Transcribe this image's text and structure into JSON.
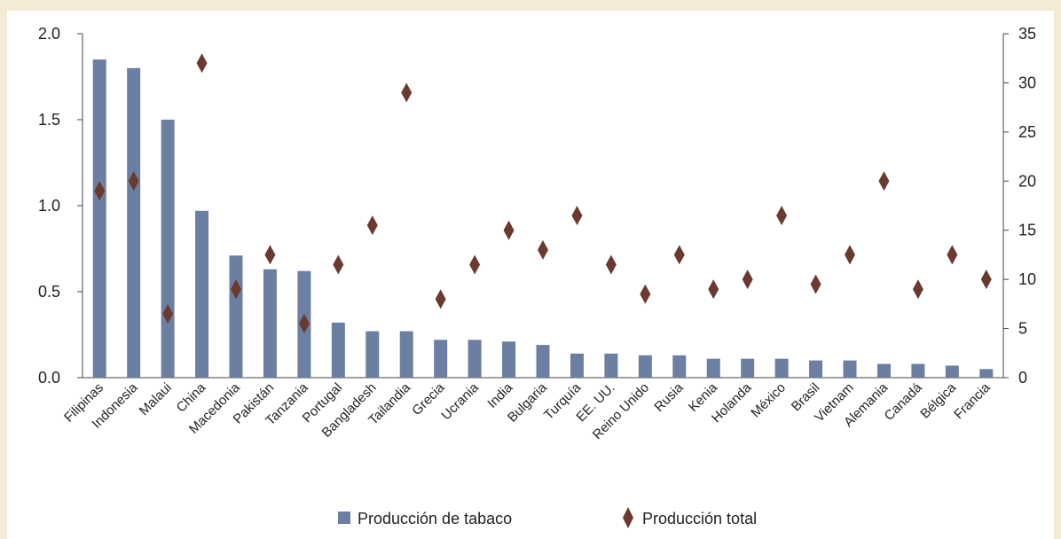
{
  "chart_data": {
    "type": "bar",
    "categories": [
      "Filipinas",
      "Indonesia",
      "Malaui",
      "China",
      "Macedonia",
      "Pakistán",
      "Tanzania",
      "Portugal",
      "Bangladesh",
      "Tailandia",
      "Grecia",
      "Ucrania",
      "India",
      "Bulgaria",
      "Turquía",
      "EE. UU.",
      "Reino Unido",
      "Rusia",
      "Kenia",
      "Holanda",
      "México",
      "Brasil",
      "Vietnam",
      "Alemania",
      "Canadá",
      "Bélgica",
      "Francia"
    ],
    "series": [
      {
        "name": "Producción de tabaco",
        "type": "bar",
        "axis": "left",
        "color": "#6b7fa3",
        "values": [
          1.85,
          1.8,
          1.5,
          0.97,
          0.71,
          0.63,
          0.62,
          0.32,
          0.27,
          0.27,
          0.22,
          0.22,
          0.21,
          0.19,
          0.14,
          0.14,
          0.13,
          0.13,
          0.11,
          0.11,
          0.11,
          0.1,
          0.1,
          0.08,
          0.08,
          0.07,
          0.05
        ]
      },
      {
        "name": "Producción total",
        "type": "scatter",
        "axis": "right",
        "marker": "diamond",
        "color": "#6b3a2e",
        "values": [
          19,
          20,
          6.5,
          32,
          9,
          12.5,
          5.5,
          11.5,
          15.5,
          29,
          8,
          11.5,
          15,
          13,
          16.5,
          11.5,
          8.5,
          12.5,
          9,
          10,
          16.5,
          9.5,
          12.5,
          20,
          9,
          12.5,
          10
        ]
      }
    ],
    "y_left": {
      "ylim": [
        0,
        2.0
      ],
      "ticks": [
        "0.0",
        "0.5",
        "1.0",
        "1.5",
        "2.0"
      ]
    },
    "y_right": {
      "ylim": [
        0,
        35
      ],
      "ticks": [
        "0",
        "5",
        "10",
        "15",
        "20",
        "25",
        "30",
        "35"
      ]
    },
    "legend": {
      "position": "bottom",
      "items": [
        "Producción de tabaco",
        "Producción total"
      ]
    },
    "grid": false,
    "title": "",
    "xlabel": "",
    "ylabel": ""
  }
}
